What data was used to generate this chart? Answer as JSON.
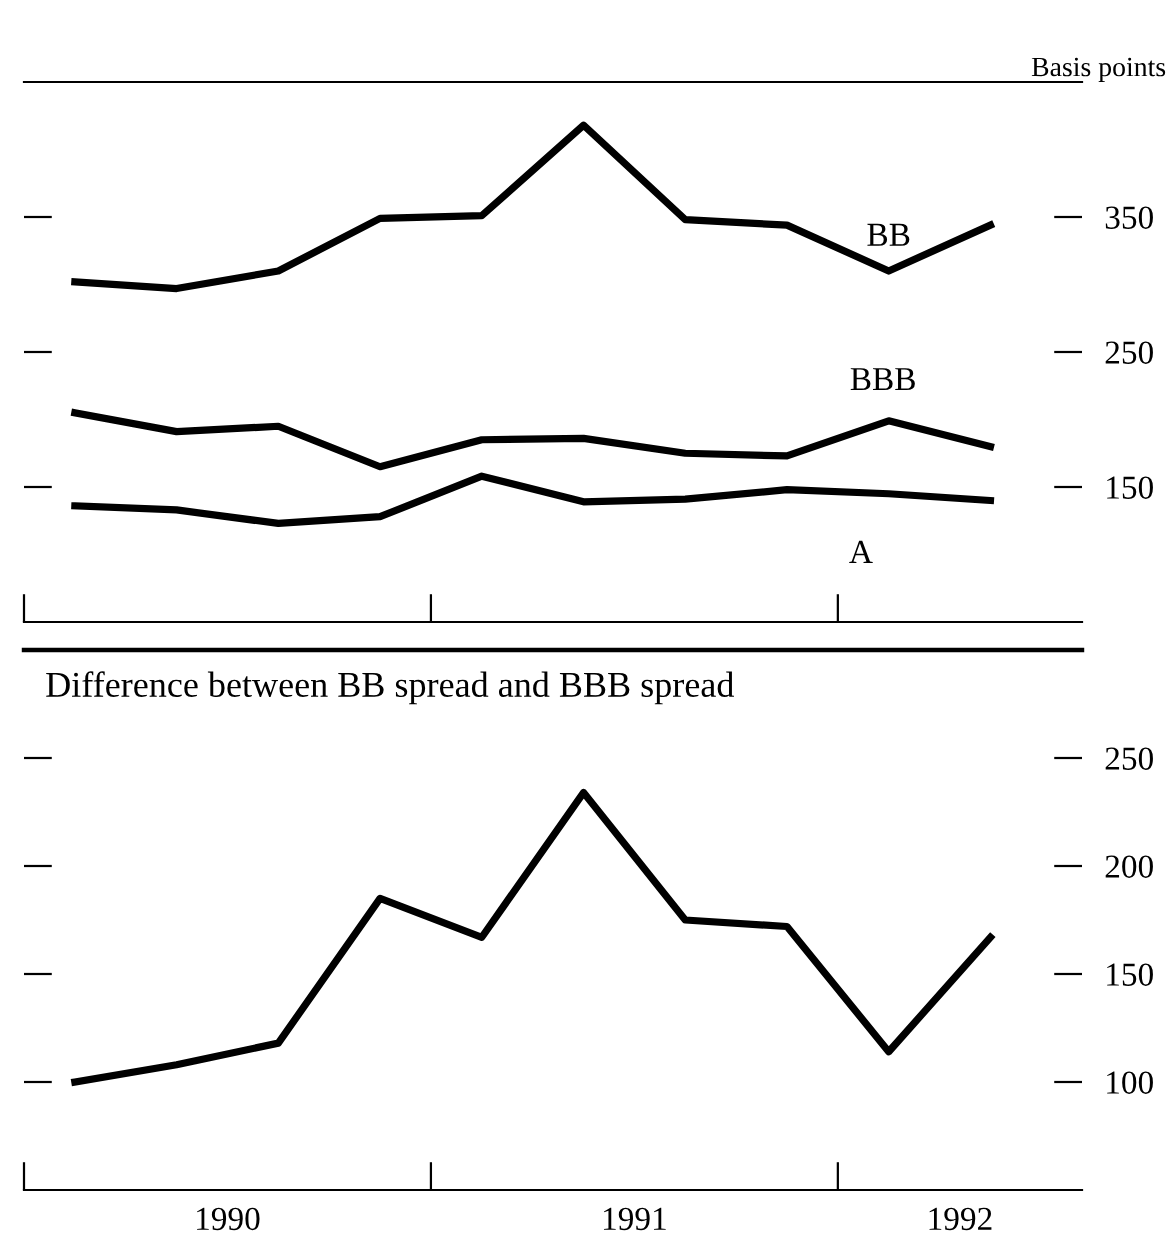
{
  "chart_data": [
    {
      "type": "line",
      "ylabel": "Basis points",
      "x": [
        1990.125,
        1990.375,
        1990.625,
        1990.875,
        1991.125,
        1991.375,
        1991.625,
        1991.875,
        1992.125,
        1992.375
      ],
      "series": [
        {
          "name": "BB",
          "color": "#000000",
          "values": [
            302,
            297,
            310,
            349,
            351,
            418,
            348,
            344,
            310,
            344
          ]
        },
        {
          "name": "BBB",
          "color": "#000000",
          "values": [
            205,
            191,
            195,
            165,
            185,
            186,
            175,
            173,
            199,
            180
          ]
        },
        {
          "name": "A",
          "color": "#000000",
          "values": [
            136,
            133,
            123,
            128,
            158,
            139,
            141,
            148,
            145,
            140
          ]
        }
      ],
      "xlim": [
        1990,
        1992.6
      ],
      "xticks": [
        {
          "value": 1990,
          "label": null
        },
        {
          "value": 1991,
          "label": null
        },
        {
          "value": 1992,
          "label": null
        }
      ],
      "ylim": [
        50,
        450
      ],
      "yticks": [
        150,
        250,
        350
      ],
      "tick_labels": "y",
      "grid": false,
      "legend": false,
      "line_style": "solid",
      "marker": "none"
    },
    {
      "type": "line",
      "title": "Difference between BB spread and BBB spread",
      "x": [
        1990.125,
        1990.375,
        1990.625,
        1990.875,
        1991.125,
        1991.375,
        1991.625,
        1991.875,
        1992.125,
        1992.375
      ],
      "series": [
        {
          "color": "#000000",
          "values": [
            100,
            108,
            118,
            185,
            167,
            234,
            175,
            172,
            114,
            167
          ]
        }
      ],
      "xlim": [
        1990,
        1992.6
      ],
      "xticks": [
        {
          "value": 1990,
          "label": null
        },
        {
          "value": 1990.5,
          "label": "1990"
        },
        {
          "value": 1991,
          "label": null
        },
        {
          "value": 1991.5,
          "label": "1991"
        },
        {
          "value": 1992,
          "label": null
        },
        {
          "value": 1992.3,
          "label": "1992"
        }
      ],
      "ylim": [
        50,
        300
      ],
      "yticks": [
        100,
        150,
        200,
        250
      ],
      "grid": false,
      "legend": false,
      "line_style": "solid",
      "marker": "none"
    }
  ]
}
